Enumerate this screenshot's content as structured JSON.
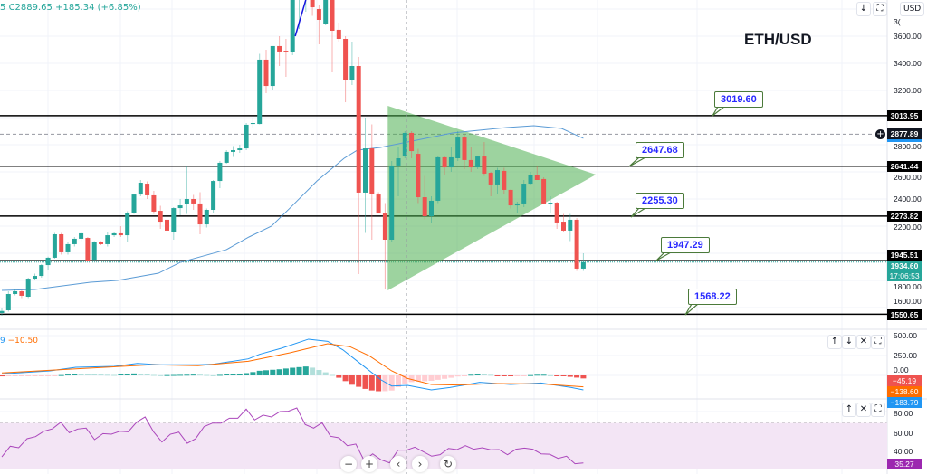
{
  "header": {
    "legend_prefix": "5",
    "close_label": "C2889.65",
    "change": "+185.34 (+6.85%)",
    "symbol_title": "ETH/USD",
    "currency_button": "USD",
    "partial_axis_label": "3(",
    "buttons": {
      "scroll_down": "↓",
      "fullscreen": "⛶"
    }
  },
  "colors": {
    "up": "#26a69a",
    "down": "#ef5350",
    "ma": "#5b9bd5",
    "triangle": "#4caf50",
    "macd": "#2196f3",
    "signal": "#ff6d00",
    "rsi": "#9c27b0",
    "rsi_band": "#f3e5f5",
    "callout_text": "#2929ff",
    "callout_border": "#4b7a3a"
  },
  "price_axis": {
    "ticks": [
      "3600.00",
      "3400.00",
      "3200.00",
      "2800.00",
      "2600.00",
      "2400.00",
      "2200.00",
      "1800.00",
      "1600.00"
    ],
    "labels": [
      {
        "value": "3013.95",
        "bg": "#000000"
      },
      {
        "value": "2877.89",
        "bg": "#131722"
      },
      {
        "value": "2641.44",
        "bg": "#000000"
      },
      {
        "value": "2273.82",
        "bg": "#000000"
      },
      {
        "value": "1945.51",
        "bg": "#000000"
      },
      {
        "value": "1550.65",
        "bg": "#000000"
      }
    ],
    "current_price": "1934.60",
    "countdown": "17:06:53"
  },
  "callouts": [
    "3019.60",
    "2647.68",
    "2255.30",
    "1947.29",
    "1568.22"
  ],
  "chart_data": [
    {
      "type": "candlestick",
      "title": "ETH/USD",
      "ylim": [
        1480,
        3867
      ],
      "ohlc": [
        [
          1560,
          1600,
          1540,
          1575
        ],
        [
          1580,
          1720,
          1570,
          1700
        ],
        [
          1700,
          1740,
          1690,
          1720
        ],
        [
          1720,
          1730,
          1670,
          1687
        ],
        [
          1680,
          1820,
          1670,
          1813
        ],
        [
          1813,
          1850,
          1800,
          1833
        ],
        [
          1833,
          1920,
          1820,
          1913
        ],
        [
          1913,
          1975,
          1880,
          1967
        ],
        [
          1967,
          2150,
          1960,
          2140
        ],
        [
          2140,
          2150,
          1990,
          2007
        ],
        [
          2007,
          2080,
          1990,
          2067
        ],
        [
          2067,
          2120,
          2050,
          2107
        ],
        [
          2107,
          2160,
          2090,
          2147
        ],
        [
          2113,
          2120,
          1940,
          1947
        ],
        [
          1953,
          2090,
          1940,
          2080
        ],
        [
          2080,
          2090,
          2060,
          2067
        ],
        [
          2067,
          2160,
          2050,
          2133
        ],
        [
          2133,
          2160,
          2120,
          2147
        ],
        [
          2147,
          2200,
          2120,
          2133
        ],
        [
          2133,
          2310,
          2080,
          2300
        ],
        [
          2300,
          2440,
          2290,
          2433
        ],
        [
          2433,
          2540,
          2420,
          2520
        ],
        [
          2513,
          2530,
          2400,
          2427
        ],
        [
          2427,
          2460,
          2290,
          2307
        ],
        [
          2313,
          2350,
          2180,
          2233
        ],
        [
          2247,
          2270,
          1950,
          2167
        ],
        [
          2160,
          2340,
          2100,
          2333
        ],
        [
          2333,
          2400,
          2280,
          2353
        ],
        [
          2360,
          2640,
          2290,
          2400
        ],
        [
          2400,
          2430,
          2320,
          2367
        ],
        [
          2367,
          2450,
          2140,
          2213
        ],
        [
          2213,
          2330,
          2190,
          2320
        ],
        [
          2320,
          2540,
          2300,
          2533
        ],
        [
          2533,
          2680,
          2480,
          2667
        ],
        [
          2667,
          2760,
          2660,
          2747
        ],
        [
          2747,
          2790,
          2710,
          2760
        ],
        [
          2760,
          2800,
          2740,
          2773
        ],
        [
          2773,
          2960,
          2760,
          2947
        ],
        [
          2953,
          3000,
          2920,
          2960
        ],
        [
          2953,
          3470,
          2950,
          3427
        ],
        [
          3427,
          3500,
          3180,
          3233
        ],
        [
          3233,
          3527,
          3200,
          3527
        ],
        [
          3527,
          3600,
          3380,
          3487
        ],
        [
          3493,
          3580,
          3300,
          3480
        ],
        [
          3480,
          3900,
          3460,
          3867
        ],
        [
          3900,
          3980,
          3653,
          3950
        ],
        [
          3950,
          4000,
          3780,
          3970
        ],
        [
          3880,
          3950,
          3750,
          3813
        ],
        [
          3800,
          3830,
          3540,
          3720
        ],
        [
          3687,
          3900,
          3680,
          3870
        ],
        [
          3870,
          3900,
          3333,
          3640
        ],
        [
          3647,
          3700,
          3560,
          3580
        ],
        [
          3580,
          3600,
          3113,
          3280
        ],
        [
          3280,
          3560,
          3240,
          3380
        ],
        [
          3380,
          3447,
          1847,
          2447
        ],
        [
          2447,
          3000,
          2150,
          2773
        ],
        [
          2773,
          2950,
          2100,
          2440
        ],
        [
          2433,
          2450,
          2300,
          2293
        ],
        [
          2293,
          2370,
          1733,
          2100
        ],
        [
          2100,
          2680,
          2080,
          2647
        ],
        [
          2647,
          2780,
          2420,
          2700
        ],
        [
          2713,
          2900,
          2700,
          2887
        ],
        [
          2887,
          2900,
          2700,
          2753
        ],
        [
          2733,
          2770,
          2370,
          2413
        ],
        [
          2413,
          2570,
          2250,
          2273
        ],
        [
          2273,
          2420,
          2220,
          2387
        ],
        [
          2387,
          2720,
          2370,
          2707
        ],
        [
          2707,
          2720,
          2580,
          2633
        ],
        [
          2633,
          2780,
          2600,
          2707
        ],
        [
          2700,
          2900,
          2680,
          2853
        ],
        [
          2853,
          2880,
          2620,
          2687
        ],
        [
          2687,
          2780,
          2600,
          2633
        ],
        [
          2633,
          2720,
          2620,
          2713
        ],
        [
          2713,
          2820,
          2570,
          2587
        ],
        [
          2593,
          2600,
          2420,
          2507
        ],
        [
          2507,
          2630,
          2440,
          2613
        ],
        [
          2607,
          2630,
          2440,
          2467
        ],
        [
          2467,
          2470,
          2330,
          2353
        ],
        [
          2353,
          2380,
          2300,
          2367
        ],
        [
          2367,
          2540,
          2340,
          2513
        ],
        [
          2513,
          2600,
          2500,
          2580
        ],
        [
          2580,
          2640,
          2560,
          2540
        ],
        [
          2547,
          2560,
          2360,
          2367
        ],
        [
          2360,
          2420,
          2300,
          2373
        ],
        [
          2373,
          2380,
          2180,
          2227
        ],
        [
          2233,
          2290,
          2160,
          2167
        ],
        [
          2167,
          2290,
          2090,
          2247
        ],
        [
          2247,
          2260,
          1870,
          1887
        ],
        [
          1887,
          2000,
          1870,
          1935
        ]
      ],
      "moving_average": [
        [
          0,
          1727
        ],
        [
          5,
          1733
        ],
        [
          13.4,
          1787
        ],
        [
          17.5,
          1800
        ],
        [
          23.7,
          1853
        ],
        [
          27,
          1933
        ],
        [
          34,
          2027
        ],
        [
          37.4,
          2120
        ],
        [
          40.8,
          2200
        ],
        [
          43.6,
          2333
        ],
        [
          47.7,
          2533
        ],
        [
          51.8,
          2700
        ],
        [
          53.8,
          2760
        ],
        [
          57.3,
          2780
        ],
        [
          61.4,
          2820
        ],
        [
          68.2,
          2887
        ],
        [
          76.4,
          2927
        ],
        [
          80.5,
          2940
        ],
        [
          84.7,
          2920
        ],
        [
          88,
          2847
        ]
      ],
      "horizontal_lines": [
        3013.95,
        2641.44,
        2273.82,
        1945.51,
        1550.65
      ],
      "dashed_line": 2877.89,
      "triangle": [
        [
          58.4,
          3087
        ],
        [
          58.4,
          1727
        ],
        [
          89.9,
          2580
        ]
      ],
      "trend_segment": [
        [
          44.4,
          3600
        ],
        [
          46,
          3867
        ]
      ]
    },
    {
      "type": "line",
      "indicator": "MACD",
      "legend": [
        "9",
        "−10.50"
      ],
      "ticks": [
        "500.00",
        "250.00",
        "0.00"
      ],
      "value_labels": [
        {
          "value": "−45.19",
          "bg": "#ef5350"
        },
        {
          "value": "−138.60",
          "bg": "#ff6d00"
        },
        {
          "value": "−183.79",
          "bg": "#2196f3"
        }
      ],
      "macd": [
        [
          0,
          19
        ],
        [
          7.3,
          57
        ],
        [
          11.2,
          102
        ],
        [
          17,
          114
        ],
        [
          20.5,
          151
        ],
        [
          24,
          133
        ],
        [
          29.7,
          133
        ],
        [
          32,
          140
        ],
        [
          37.3,
          208
        ],
        [
          39,
          265
        ],
        [
          42.3,
          341
        ],
        [
          46.4,
          455
        ],
        [
          49.3,
          428
        ],
        [
          51.6,
          322
        ],
        [
          54.5,
          133
        ],
        [
          57.4,
          -57
        ],
        [
          59,
          -133
        ],
        [
          61.4,
          -125
        ],
        [
          65,
          -182
        ],
        [
          67.8,
          -152
        ],
        [
          72.3,
          -87
        ],
        [
          77,
          -114
        ],
        [
          81.6,
          -95
        ],
        [
          86.2,
          -152
        ],
        [
          88,
          -182
        ]
      ],
      "signal": [
        [
          0,
          31
        ],
        [
          11.2,
          83
        ],
        [
          22.7,
          133
        ],
        [
          29.7,
          122
        ],
        [
          37.3,
          178
        ],
        [
          43.6,
          284
        ],
        [
          49.3,
          398
        ],
        [
          52.7,
          360
        ],
        [
          55.6,
          246
        ],
        [
          59,
          57
        ],
        [
          61.4,
          -38
        ],
        [
          65,
          -114
        ],
        [
          69,
          -121
        ],
        [
          74.7,
          -102
        ],
        [
          81.6,
          -106
        ],
        [
          86.2,
          -133
        ],
        [
          88,
          -144
        ]
      ]
    },
    {
      "type": "line",
      "indicator": "RSI",
      "ticks": [
        "80.00",
        "60.00",
        "40.00"
      ],
      "band": [
        30,
        70
      ],
      "value_label": "35.27",
      "values": [
        40.6,
        49.8,
        48.5,
        56.4,
        58.2,
        62.9,
        65,
        70.8,
        61.6,
        64.8,
        65.6,
        55.6,
        60.8,
        60.3,
        62.9,
        62.4,
        70.8,
        75.3,
        62.4,
        53.5,
        60.3,
        62.1,
        52.4,
        56.4,
        66.9,
        70,
        70,
        74.2,
        74.2,
        82.1,
        72.7,
        76.9,
        75.3,
        80,
        80.3,
        83.1,
        68.7,
        65.6,
        70.3,
        58.5,
        57.2,
        50.3,
        51.7,
        37.2,
        43.2,
        38,
        35.4,
        46.4,
        46.4,
        49,
        45.1,
        41.2,
        42.5,
        47.9,
        46.9,
        50.3,
        47.2,
        48.5,
        46.7,
        46.9,
        42.5,
        47.2,
        48.2,
        47.2,
        43.2,
        42.9,
        39.3,
        41.2,
        34.6,
        35.3
      ]
    }
  ],
  "pane_buttons": {
    "macd": [
      "↑",
      "↓",
      "✕",
      "⛶"
    ],
    "rsi": [
      "↑",
      "✕",
      "⛶"
    ]
  },
  "nav": {
    "zoom_out": "−",
    "zoom_in": "+",
    "scroll_left": "‹",
    "scroll_right": "›",
    "reset": "↻"
  }
}
